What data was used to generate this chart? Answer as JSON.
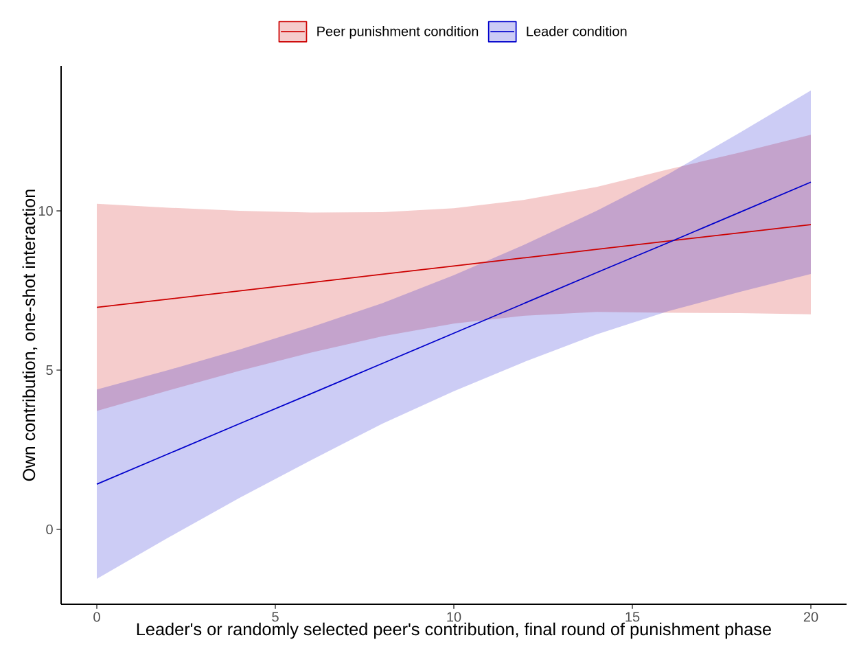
{
  "chart_data": {
    "type": "line",
    "xlabel": "Leader's or randomly selected peer's contribution, final round of punishment phase",
    "ylabel": "Own contribution, one-shot interaction",
    "x": [
      0,
      2,
      4,
      6,
      8,
      10,
      12,
      14,
      16,
      18,
      20
    ],
    "series": [
      {
        "name": "Peer punishment condition",
        "color": "#cc0000",
        "values": [
          6.97,
          7.23,
          7.49,
          7.75,
          8.01,
          8.27,
          8.53,
          8.79,
          9.05,
          9.31,
          9.57
        ],
        "upper": [
          10.22,
          10.1,
          10.0,
          9.95,
          9.96,
          10.08,
          10.35,
          10.75,
          11.3,
          11.83,
          12.39
        ],
        "lower": [
          3.72,
          4.36,
          4.98,
          5.55,
          6.06,
          6.46,
          6.71,
          6.83,
          6.8,
          6.79,
          6.75
        ]
      },
      {
        "name": "Leader condition",
        "color": "#0000cc",
        "values": [
          1.42,
          2.37,
          3.32,
          4.26,
          5.21,
          6.16,
          7.11,
          8.06,
          9.0,
          9.95,
          10.9
        ],
        "upper": [
          4.39,
          5.0,
          5.65,
          6.35,
          7.1,
          7.98,
          8.95,
          10.0,
          11.15,
          12.45,
          13.78
        ],
        "lower": [
          -1.55,
          -0.26,
          0.99,
          2.17,
          3.32,
          4.34,
          5.27,
          6.12,
          6.85,
          7.45,
          8.02
        ]
      }
    ],
    "xlim": [
      -1,
      21
    ],
    "ylim": [
      -2.35,
      14.55
    ],
    "xticks": [
      0,
      5,
      10,
      15,
      20
    ],
    "yticks": [
      0,
      5,
      10
    ],
    "grid": false,
    "legend": "top",
    "marker": "none",
    "line_style": "solid"
  }
}
